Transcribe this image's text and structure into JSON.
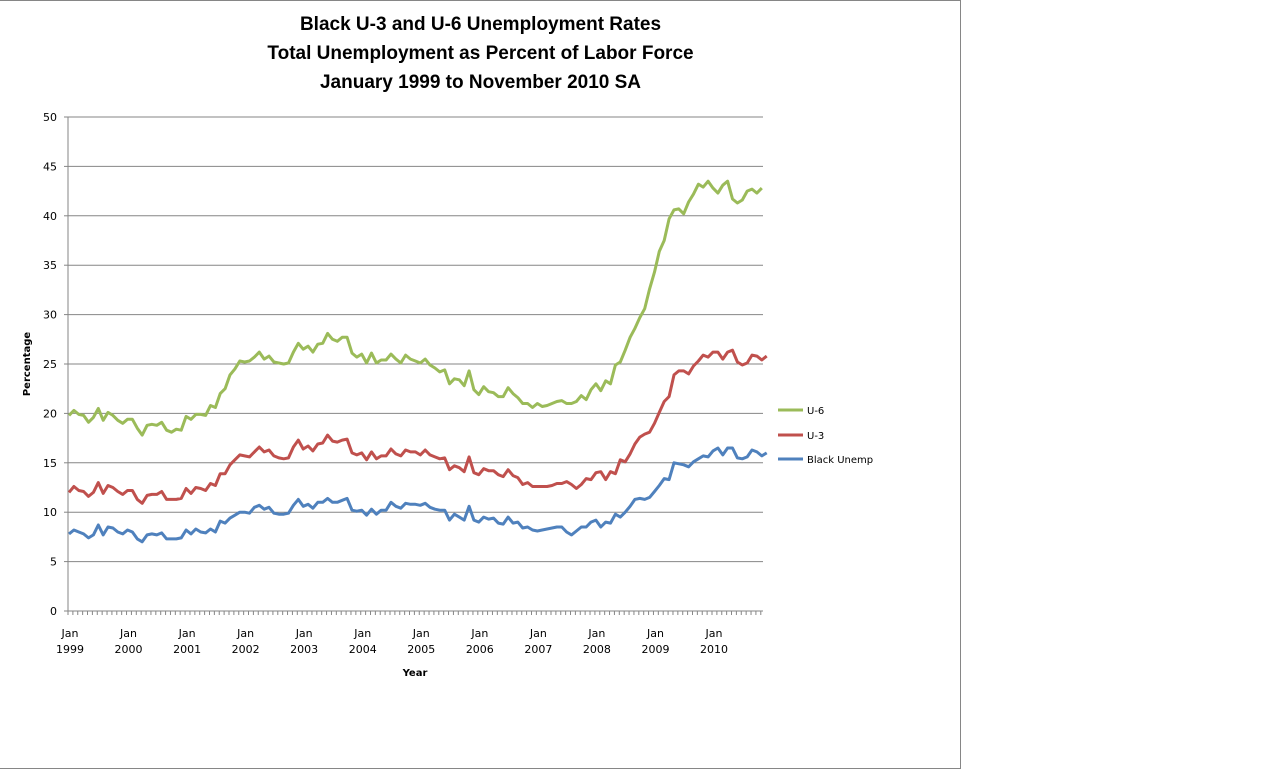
{
  "chart_data": {
    "type": "line",
    "title": "Black U-3 and U-6 Unemployment Rates",
    "subtitle": [
      "Total Unemployment as Percent of Labor Force",
      "January 1999 to November 2010 SA"
    ],
    "title_lines": [
      "Black U-3 and U-6 Unemployment Rates",
      "Total Unemployment as Percent of Labor Force",
      "January 1999 to November 2010 SA"
    ],
    "xlabel": "Year",
    "ylabel": "Percentage",
    "ylim": [
      0,
      50
    ],
    "yticks": [
      0,
      5,
      10,
      15,
      20,
      25,
      30,
      35,
      40,
      45,
      50
    ],
    "xtick_labels": [
      [
        "Jan",
        "1999"
      ],
      [
        "Jan",
        "2000"
      ],
      [
        "Jan",
        "2001"
      ],
      [
        "Jan",
        "2002"
      ],
      [
        "Jan",
        "2003"
      ],
      [
        "Jan",
        "2004"
      ],
      [
        "Jan",
        "2005"
      ],
      [
        "Jan",
        "2006"
      ],
      [
        "Jan",
        "2007"
      ],
      [
        "Jan",
        "2008"
      ],
      [
        "Jan",
        "2009"
      ],
      [
        "Jan",
        "2010"
      ]
    ],
    "x_start": "Jan 1999",
    "x_end": "Nov 2010",
    "frequency": "monthly",
    "grid": true,
    "legend_position": "right",
    "series": [
      {
        "name": "U-6",
        "color": "#9BBB59",
        "values": [
          19.8,
          20.3,
          19.9,
          19.8,
          19.1,
          19.6,
          20.5,
          19.3,
          20.1,
          19.8,
          19.3,
          19.0,
          19.4,
          19.4,
          18.5,
          17.8,
          18.8,
          18.9,
          18.8,
          19.1,
          18.3,
          18.1,
          18.4,
          18.3,
          19.7,
          19.4,
          19.9,
          19.9,
          19.8,
          20.8,
          20.6,
          22.0,
          22.5,
          23.9,
          24.5,
          25.3,
          25.2,
          25.3,
          25.7,
          26.2,
          25.5,
          25.8,
          25.2,
          25.1,
          25.0,
          25.1,
          26.2,
          27.1,
          26.5,
          26.8,
          26.2,
          27.0,
          27.1,
          28.1,
          27.5,
          27.3,
          27.7,
          27.7,
          26.1,
          25.7,
          26.0,
          25.1,
          26.1,
          25.1,
          25.4,
          25.4,
          26.0,
          25.5,
          25.1,
          25.9,
          25.5,
          25.3,
          25.1,
          25.5,
          24.9,
          24.6,
          24.2,
          24.4,
          23.0,
          23.5,
          23.4,
          22.8,
          24.3,
          22.4,
          21.9,
          22.7,
          22.2,
          22.1,
          21.7,
          21.7,
          22.6,
          22.0,
          21.6,
          21.0,
          21.0,
          20.6,
          21.0,
          20.7,
          20.8,
          21.0,
          21.2,
          21.3,
          21.0,
          21.0,
          21.2,
          21.8,
          21.4,
          22.4,
          23.0,
          22.3,
          23.3,
          23.0,
          24.9,
          25.2,
          26.4,
          27.7,
          28.6,
          29.7,
          30.6,
          32.6,
          34.3,
          36.4,
          37.5,
          39.7,
          40.6,
          40.7,
          40.2,
          41.4,
          42.2,
          43.2,
          42.9,
          43.5,
          42.8,
          42.3,
          43.1,
          43.5,
          41.7,
          41.3,
          41.6,
          42.5,
          42.7,
          42.3,
          42.8
        ]
      },
      {
        "name": "U-3",
        "color": "#C0504D",
        "values": [
          12.0,
          12.6,
          12.2,
          12.1,
          11.6,
          12.0,
          13.0,
          11.9,
          12.7,
          12.5,
          12.1,
          11.8,
          12.2,
          12.2,
          11.3,
          10.9,
          11.7,
          11.8,
          11.8,
          12.1,
          11.3,
          11.3,
          11.3,
          11.4,
          12.4,
          11.9,
          12.5,
          12.4,
          12.2,
          12.9,
          12.7,
          13.9,
          13.9,
          14.8,
          15.3,
          15.8,
          15.7,
          15.6,
          16.1,
          16.6,
          16.1,
          16.3,
          15.7,
          15.5,
          15.4,
          15.5,
          16.6,
          17.3,
          16.4,
          16.7,
          16.2,
          16.9,
          17.0,
          17.8,
          17.2,
          17.1,
          17.3,
          17.4,
          16.0,
          15.8,
          16.0,
          15.3,
          16.1,
          15.4,
          15.7,
          15.7,
          16.4,
          15.9,
          15.7,
          16.3,
          16.1,
          16.1,
          15.8,
          16.3,
          15.8,
          15.6,
          15.4,
          15.5,
          14.3,
          14.7,
          14.5,
          14.1,
          15.6,
          14.0,
          13.8,
          14.4,
          14.2,
          14.2,
          13.8,
          13.6,
          14.3,
          13.7,
          13.5,
          12.8,
          13.0,
          12.6,
          12.6,
          12.6,
          12.6,
          12.7,
          12.9,
          12.9,
          13.1,
          12.8,
          12.4,
          12.8,
          13.4,
          13.3,
          14.0,
          14.1,
          13.3,
          14.1,
          13.9,
          15.3,
          15.1,
          15.9,
          16.9,
          17.6,
          17.9,
          18.1,
          19.0,
          20.1,
          21.2,
          21.7,
          23.9,
          24.3,
          24.3,
          24.0,
          24.8,
          25.3,
          25.9,
          25.7,
          26.2,
          26.2,
          25.5,
          26.2,
          26.4,
          25.2,
          24.9,
          25.1,
          25.9,
          25.8,
          25.4,
          25.8
        ]
      },
      {
        "name": "Black Unemp",
        "color": "#4F81BD",
        "values": [
          7.8,
          8.2,
          8.0,
          7.8,
          7.4,
          7.7,
          8.7,
          7.7,
          8.5,
          8.4,
          8.0,
          7.8,
          8.2,
          8.0,
          7.3,
          7.0,
          7.7,
          7.8,
          7.7,
          7.9,
          7.3,
          7.3,
          7.3,
          7.4,
          8.2,
          7.8,
          8.3,
          8.0,
          7.9,
          8.3,
          8.0,
          9.1,
          8.9,
          9.4,
          9.7,
          10.0,
          10.0,
          9.9,
          10.5,
          10.7,
          10.3,
          10.5,
          9.9,
          9.8,
          9.8,
          9.9,
          10.7,
          11.3,
          10.6,
          10.8,
          10.4,
          11.0,
          11.0,
          11.4,
          11.0,
          11.0,
          11.2,
          11.4,
          10.2,
          10.1,
          10.2,
          9.7,
          10.3,
          9.8,
          10.2,
          10.2,
          11.0,
          10.6,
          10.4,
          10.9,
          10.8,
          10.8,
          10.7,
          10.9,
          10.5,
          10.3,
          10.2,
          10.2,
          9.2,
          9.8,
          9.5,
          9.2,
          10.6,
          9.2,
          9.0,
          9.5,
          9.3,
          9.4,
          8.9,
          8.8,
          9.5,
          8.9,
          9.0,
          8.4,
          8.5,
          8.2,
          8.1,
          8.2,
          8.3,
          8.4,
          8.5,
          8.5,
          8.0,
          7.7,
          8.1,
          8.5,
          8.5,
          9.0,
          9.2,
          8.5,
          9.0,
          8.9,
          9.8,
          9.5,
          10.0,
          10.6,
          11.3,
          11.4,
          11.3,
          11.5,
          12.1,
          12.7,
          13.4,
          13.3,
          15.0,
          14.9,
          14.8,
          14.6,
          15.1,
          15.4,
          15.7,
          15.6,
          16.2,
          16.5,
          15.8,
          16.5,
          16.5,
          15.5,
          15.4,
          15.6,
          16.3,
          16.1,
          15.7,
          16.0
        ]
      }
    ]
  }
}
